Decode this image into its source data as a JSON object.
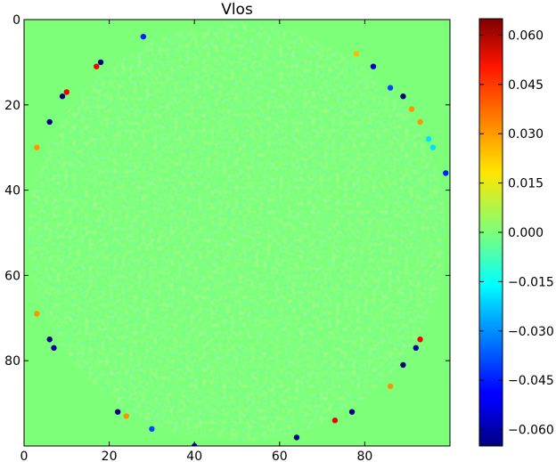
{
  "chart_data": {
    "type": "heatmap",
    "title": "Vlos",
    "xlabel": "",
    "ylabel": "",
    "x_range": [
      0,
      100
    ],
    "y_range": [
      100,
      0
    ],
    "x_ticks": [
      0,
      20,
      40,
      60,
      80
    ],
    "y_ticks": [
      0,
      20,
      40,
      60,
      80
    ],
    "colorbar": {
      "colormap": "jet",
      "vmin": -0.065,
      "vmax": 0.065,
      "ticks": [
        "0.060",
        "0.045",
        "0.030",
        "0.015",
        "0.000",
        "−0.015",
        "−0.030",
        "−0.045",
        "−0.060"
      ],
      "tick_values": [
        0.06,
        0.045,
        0.03,
        0.015,
        0.0,
        -0.015,
        -0.03,
        -0.045,
        -0.06
      ]
    },
    "background_value": 0.0,
    "disk": {
      "center_x": 50,
      "center_y": 50,
      "radius": 49
    },
    "rim_points": [
      {
        "x": 28,
        "y": 4,
        "v": -0.045
      },
      {
        "x": 18,
        "y": 10,
        "v": -0.065
      },
      {
        "x": 17,
        "y": 11,
        "v": 0.05
      },
      {
        "x": 10,
        "y": 17,
        "v": 0.05
      },
      {
        "x": 9,
        "y": 18,
        "v": -0.065
      },
      {
        "x": 6,
        "y": 24,
        "v": -0.065
      },
      {
        "x": 3,
        "y": 30,
        "v": 0.03
      },
      {
        "x": 6,
        "y": 75,
        "v": -0.065
      },
      {
        "x": 7,
        "y": 77,
        "v": -0.06
      },
      {
        "x": 3,
        "y": 69,
        "v": 0.03
      },
      {
        "x": 22,
        "y": 92,
        "v": -0.065
      },
      {
        "x": 24,
        "y": 93,
        "v": 0.03
      },
      {
        "x": 30,
        "y": 96,
        "v": -0.04
      },
      {
        "x": 40,
        "y": 100,
        "v": -0.05
      },
      {
        "x": 64,
        "y": 98,
        "v": -0.065
      },
      {
        "x": 73,
        "y": 94,
        "v": 0.05
      },
      {
        "x": 77,
        "y": 92,
        "v": -0.065
      },
      {
        "x": 86,
        "y": 86,
        "v": 0.03
      },
      {
        "x": 89,
        "y": 81,
        "v": -0.065
      },
      {
        "x": 93,
        "y": 75,
        "v": 0.05
      },
      {
        "x": 92,
        "y": 77,
        "v": -0.06
      },
      {
        "x": 82,
        "y": 11,
        "v": -0.055
      },
      {
        "x": 86,
        "y": 16,
        "v": -0.04
      },
      {
        "x": 89,
        "y": 18,
        "v": -0.065
      },
      {
        "x": 91,
        "y": 21,
        "v": 0.03
      },
      {
        "x": 93,
        "y": 24,
        "v": 0.03
      },
      {
        "x": 95,
        "y": 28,
        "v": -0.02
      },
      {
        "x": 96,
        "y": 30,
        "v": -0.02
      },
      {
        "x": 99,
        "y": 36,
        "v": -0.045
      },
      {
        "x": 78,
        "y": 8,
        "v": 0.025
      }
    ]
  }
}
